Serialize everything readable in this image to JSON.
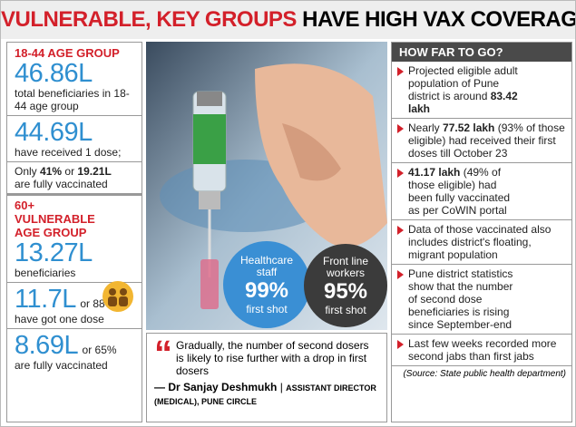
{
  "title": {
    "highlight": "VULNERABLE, KEY GROUPS",
    "rest": "HAVE HIGH VAX COVERAGE"
  },
  "left": {
    "group1": {
      "heading": "18-44 AGE GROUP",
      "total": {
        "value": "46.86L",
        "text": "total beneficiaries in 18-44 age group"
      },
      "first": {
        "value": "44.69L",
        "text": "have received 1 dose;"
      },
      "full": {
        "prefix": "Only",
        "percent": "41%",
        "joiner": "or",
        "value": "19.21L",
        "text": "are fully vaccinated"
      }
    },
    "group2": {
      "heading": "60+ VULNERABLE AGE GROUP",
      "total": {
        "value": "13.27L",
        "text": "beneficiaries"
      },
      "first": {
        "value": "11.7L",
        "percent": "or 88%",
        "text": "have got one dose"
      },
      "full": {
        "value": "8.69L",
        "percent": "or 65%",
        "text": "are fully vaccinated"
      }
    }
  },
  "bubbles": [
    {
      "label": "Healthcare staff",
      "value": "99%",
      "caption": "first shot"
    },
    {
      "label": "Front line workers",
      "value": "95%",
      "caption": "first shot"
    }
  ],
  "quote": {
    "text": "Gradually, the number of second dosers is likely to rise further with a drop in first dosers",
    "author": "— Dr Sanjay Deshmukh",
    "role": "ASSISTANT DIRECTOR (MEDICAL), PUNE CIRCLE"
  },
  "right": {
    "heading": "HOW FAR TO GO?",
    "items": [
      [
        {
          "text": "Projected eligible adult population of Pune district is around "
        },
        {
          "text": "83.42 lakh",
          "bold": true
        }
      ],
      [
        {
          "text": "Nearly "
        },
        {
          "text": "77.52 lakh",
          "bold": true
        },
        {
          "text": " (93% of those eligible) had received their first doses till October 23"
        }
      ],
      [
        {
          "text": "41.17 lakh",
          "bold": true
        },
        {
          "text": " (49% of those eligible) had been fully vaccinated as per CoWIN portal"
        }
      ],
      [
        {
          "text": "Data of those vaccinated also includes district's floating, migrant population"
        }
      ],
      [
        {
          "text": "Pune district statistics show that the number of second dose beneficiaries is rising since September-end"
        }
      ],
      [
        {
          "text": "Last few weeks recorded more second jabs than first jabs"
        }
      ]
    ],
    "source": "(Source: State public health department)"
  }
}
